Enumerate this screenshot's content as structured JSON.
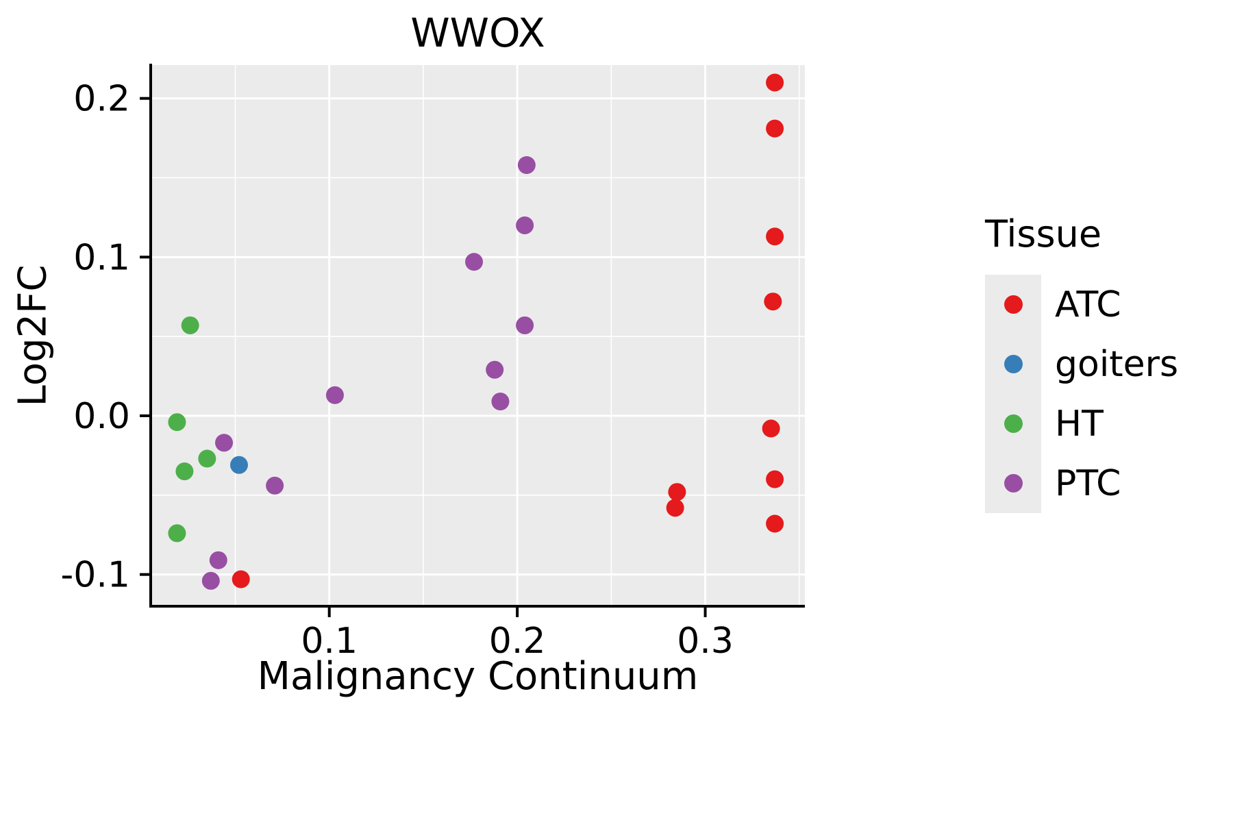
{
  "chart_data": {
    "type": "scatter",
    "title": "WWOX",
    "xlabel": "Malignancy Continuum",
    "ylabel": "Log2FC",
    "legend_title": "Tissue",
    "xlim": [
      0.005,
      0.353
    ],
    "ylim": [
      -0.12,
      0.221
    ],
    "x_ticks": [
      0.1,
      0.2,
      0.3
    ],
    "y_ticks": [
      -0.1,
      0.0,
      0.1,
      0.2
    ],
    "x_minor_ticks": [
      0.05,
      0.15,
      0.25,
      0.35
    ],
    "y_minor_ticks": [
      -0.05,
      0.05,
      0.15
    ],
    "panel_color": "#EBEBEB",
    "grid_color": "#FFFFFF",
    "series": [
      {
        "name": "ATC",
        "color": "#E41A1C",
        "points": [
          [
            0.337,
            0.21
          ],
          [
            0.337,
            0.181
          ],
          [
            0.337,
            0.113
          ],
          [
            0.336,
            0.072
          ],
          [
            0.335,
            -0.008
          ],
          [
            0.337,
            -0.04
          ],
          [
            0.337,
            -0.068
          ],
          [
            0.285,
            -0.048
          ],
          [
            0.284,
            -0.058
          ],
          [
            0.053,
            -0.103
          ]
        ]
      },
      {
        "name": "goiters",
        "color": "#377EB8",
        "points": [
          [
            0.052,
            -0.031
          ]
        ]
      },
      {
        "name": "HT",
        "color": "#4DAF4A",
        "points": [
          [
            0.026,
            0.057
          ],
          [
            0.019,
            -0.004
          ],
          [
            0.023,
            -0.035
          ],
          [
            0.035,
            -0.027
          ],
          [
            0.019,
            -0.074
          ]
        ]
      },
      {
        "name": "PTC",
        "color": "#984EA3",
        "points": [
          [
            0.205,
            0.158
          ],
          [
            0.204,
            0.12
          ],
          [
            0.177,
            0.097
          ],
          [
            0.204,
            0.057
          ],
          [
            0.188,
            0.029
          ],
          [
            0.191,
            0.009
          ],
          [
            0.103,
            0.013
          ],
          [
            0.044,
            -0.017
          ],
          [
            0.071,
            -0.044
          ],
          [
            0.041,
            -0.091
          ],
          [
            0.037,
            -0.104
          ]
        ]
      }
    ]
  }
}
